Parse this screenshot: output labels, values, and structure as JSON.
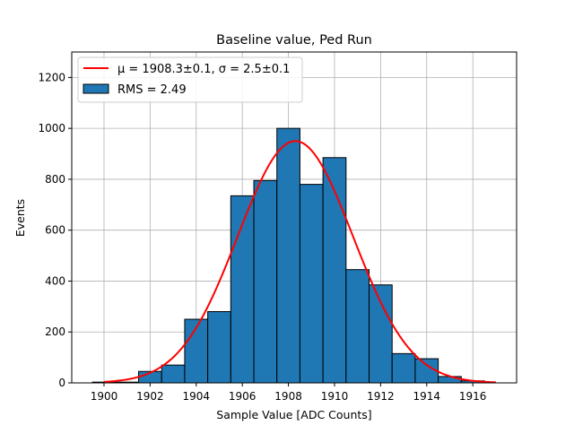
{
  "chart_data": {
    "type": "bar",
    "title": "Baseline value, Ped Run",
    "xlabel": "Sample Value [ADC Counts]",
    "ylabel": "Events",
    "xlim": [
      1898.6,
      1917.9
    ],
    "ylim": [
      0,
      1300
    ],
    "grid": true,
    "xticks": [
      1900,
      1902,
      1904,
      1906,
      1908,
      1910,
      1912,
      1914,
      1916
    ],
    "yticks": [
      0,
      200,
      400,
      600,
      800,
      1000,
      1200
    ],
    "bin_edges": [
      1899.5,
      1900.5,
      1901.5,
      1902.5,
      1903.5,
      1904.5,
      1905.5,
      1906.5,
      1907.5,
      1908.5,
      1909.5,
      1910.5,
      1911.5,
      1912.5,
      1913.5,
      1914.5,
      1915.5,
      1916.5
    ],
    "values": [
      3,
      3,
      45,
      70,
      250,
      280,
      735,
      795,
      1000,
      780,
      885,
      445,
      385,
      115,
      95,
      25,
      8
    ],
    "fit": {
      "amplitude": 950,
      "mu": 1908.3,
      "sigma": 2.5,
      "range": [
        1900,
        1917
      ]
    },
    "legend": {
      "placement": "top-left",
      "entries": [
        {
          "label": "μ = 1908.3±0.1, σ = 2.5±0.1",
          "color": "#ff0000",
          "kind": "line"
        },
        {
          "label": "RMS = 2.49",
          "color": "#1f77b4",
          "kind": "patch"
        }
      ]
    },
    "colors": {
      "bar": "#1f77b4",
      "fit": "#ff0000"
    }
  }
}
